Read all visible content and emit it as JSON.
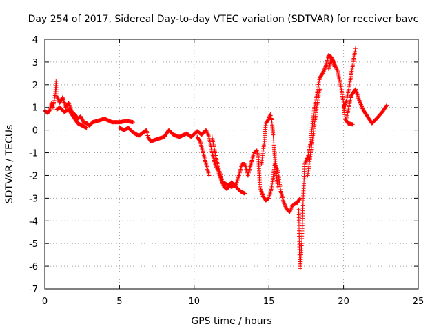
{
  "chart_data": {
    "type": "scatter",
    "title": "Day 254 of 2017, Sidereal Day-to-day VTEC variation (SDTVAR) for receiver bavc",
    "xlabel": "GPS time / hours",
    "ylabel": "SDTVAR / TECUs",
    "xlim": [
      0,
      25
    ],
    "ylim": [
      -7,
      4
    ],
    "x_ticks": [
      "0",
      "5",
      "10",
      "15",
      "20",
      "25"
    ],
    "y_ticks": [
      "-7",
      "-6",
      "-5",
      "-4",
      "-3",
      "-2",
      "-1",
      "0",
      "1",
      "2",
      "3",
      "4"
    ],
    "grid": true,
    "marker": "+",
    "series": [
      {
        "color": "#ff0000",
        "segments": [
          [
            [
              0.0,
              0.85
            ],
            [
              0.2,
              0.75
            ],
            [
              0.35,
              0.9
            ],
            [
              0.45,
              1.2
            ],
            [
              0.55,
              1.0
            ],
            [
              0.7,
              1.6
            ],
            [
              0.75,
              2.15
            ],
            [
              0.8,
              1.5
            ],
            [
              1.0,
              1.2
            ],
            [
              1.2,
              1.45
            ],
            [
              1.4,
              1.0
            ],
            [
              1.6,
              1.2
            ],
            [
              1.8,
              0.8
            ],
            [
              2.0,
              0.7
            ],
            [
              2.2,
              0.5
            ],
            [
              2.4,
              0.6
            ],
            [
              2.6,
              0.35
            ],
            [
              2.8,
              0.3
            ],
            [
              3.0,
              0.2
            ],
            [
              3.2,
              0.35
            ],
            [
              3.5,
              0.4
            ],
            [
              4.0,
              0.5
            ],
            [
              4.5,
              0.35
            ],
            [
              5.0,
              0.35
            ],
            [
              5.5,
              0.4
            ],
            [
              5.9,
              0.35
            ]
          ],
          [
            [
              0.8,
              0.9
            ],
            [
              1.0,
              1.0
            ],
            [
              1.3,
              0.8
            ],
            [
              1.6,
              0.9
            ],
            [
              1.9,
              0.6
            ],
            [
              2.2,
              0.3
            ],
            [
              2.5,
              0.2
            ],
            [
              2.8,
              0.1
            ]
          ],
          [
            [
              5.0,
              0.1
            ],
            [
              5.3,
              0.0
            ],
            [
              5.6,
              0.1
            ],
            [
              5.9,
              -0.1
            ],
            [
              6.3,
              -0.25
            ],
            [
              6.8,
              0.0
            ],
            [
              6.9,
              -0.3
            ],
            [
              7.1,
              -0.5
            ],
            [
              7.5,
              -0.4
            ],
            [
              8.0,
              -0.3
            ],
            [
              8.3,
              0.0
            ],
            [
              8.6,
              -0.2
            ],
            [
              9.0,
              -0.3
            ],
            [
              9.5,
              -0.15
            ],
            [
              9.8,
              -0.3
            ],
            [
              10.2,
              -0.05
            ],
            [
              10.5,
              -0.2
            ],
            [
              10.8,
              0.0
            ],
            [
              11.0,
              -0.3
            ],
            [
              11.2,
              -1.0
            ],
            [
              11.4,
              -1.5
            ],
            [
              11.6,
              -1.8
            ],
            [
              11.8,
              -2.2
            ],
            [
              12.0,
              -2.5
            ],
            [
              12.2,
              -2.6
            ],
            [
              12.5,
              -2.3
            ],
            [
              12.8,
              -2.5
            ],
            [
              13.1,
              -2.7
            ],
            [
              13.4,
              -2.8
            ]
          ],
          [
            [
              10.2,
              -0.3
            ],
            [
              10.4,
              -0.5
            ],
            [
              10.6,
              -1.0
            ],
            [
              10.8,
              -1.5
            ],
            [
              11.0,
              -2.0
            ]
          ],
          [
            [
              11.2,
              -0.3
            ],
            [
              11.4,
              -1.0
            ],
            [
              11.6,
              -1.6
            ],
            [
              11.9,
              -2.3
            ],
            [
              12.2,
              -2.4
            ],
            [
              12.5,
              -2.5
            ],
            [
              12.8,
              -2.4
            ],
            [
              13.0,
              -2.0
            ],
            [
              13.2,
              -1.5
            ],
            [
              13.4,
              -1.5
            ],
            [
              13.6,
              -2.0
            ],
            [
              13.8,
              -1.5
            ],
            [
              14.0,
              -1.0
            ],
            [
              14.2,
              -0.9
            ],
            [
              14.3,
              -1.2
            ],
            [
              14.4,
              -2.5
            ],
            [
              14.6,
              -2.9
            ],
            [
              14.8,
              -3.1
            ],
            [
              15.0,
              -3.0
            ],
            [
              15.2,
              -2.5
            ],
            [
              15.4,
              -1.5
            ],
            [
              15.6,
              -1.8
            ],
            [
              15.8,
              -2.7
            ],
            [
              16.0,
              -3.2
            ],
            [
              16.2,
              -3.5
            ],
            [
              16.4,
              -3.6
            ],
            [
              16.6,
              -3.3
            ],
            [
              16.9,
              -3.2
            ],
            [
              17.1,
              -3.0
            ]
          ],
          [
            [
              14.5,
              -1.5
            ],
            [
              14.7,
              -0.5
            ],
            [
              14.8,
              0.3
            ],
            [
              15.0,
              0.5
            ],
            [
              15.1,
              0.7
            ],
            [
              15.2,
              0.4
            ],
            [
              15.3,
              -0.3
            ],
            [
              15.4,
              -1.2
            ],
            [
              15.5,
              -2.0
            ],
            [
              15.6,
              -2.5
            ]
          ],
          [
            [
              17.0,
              -3.5
            ],
            [
              17.05,
              -5.5
            ],
            [
              17.1,
              -6.1
            ],
            [
              17.2,
              -5.0
            ],
            [
              17.3,
              -3.0
            ],
            [
              17.4,
              -1.5
            ],
            [
              17.6,
              -1.2
            ],
            [
              17.8,
              -0.5
            ],
            [
              18.0,
              0.8
            ],
            [
              18.2,
              1.5
            ],
            [
              18.4,
              2.3
            ],
            [
              18.6,
              2.5
            ],
            [
              18.8,
              2.8
            ],
            [
              19.0,
              3.3
            ],
            [
              19.2,
              3.2
            ],
            [
              19.4,
              2.9
            ],
            [
              19.6,
              2.6
            ],
            [
              19.8,
              2.0
            ],
            [
              20.0,
              1.2
            ],
            [
              20.1,
              0.5
            ],
            [
              20.3,
              0.3
            ],
            [
              20.6,
              0.25
            ]
          ],
          [
            [
              17.6,
              -2.0
            ],
            [
              17.8,
              -1.0
            ],
            [
              18.0,
              0.0
            ],
            [
              18.2,
              1.0
            ],
            [
              18.4,
              1.8
            ]
          ],
          [
            [
              19.0,
              2.7
            ],
            [
              19.2,
              3.2
            ],
            [
              19.4,
              2.8
            ]
          ],
          [
            [
              20.0,
              1.0
            ],
            [
              20.2,
              1.3
            ],
            [
              20.4,
              2.0
            ],
            [
              20.6,
              2.8
            ],
            [
              20.8,
              3.6
            ]
          ],
          [
            [
              20.2,
              0.5
            ],
            [
              20.5,
              1.5
            ],
            [
              20.8,
              1.8
            ],
            [
              21.0,
              1.4
            ],
            [
              21.3,
              0.9
            ],
            [
              21.6,
              0.6
            ],
            [
              21.9,
              0.3
            ],
            [
              22.2,
              0.5
            ],
            [
              22.6,
              0.8
            ],
            [
              22.9,
              1.1
            ]
          ]
        ]
      }
    ]
  }
}
